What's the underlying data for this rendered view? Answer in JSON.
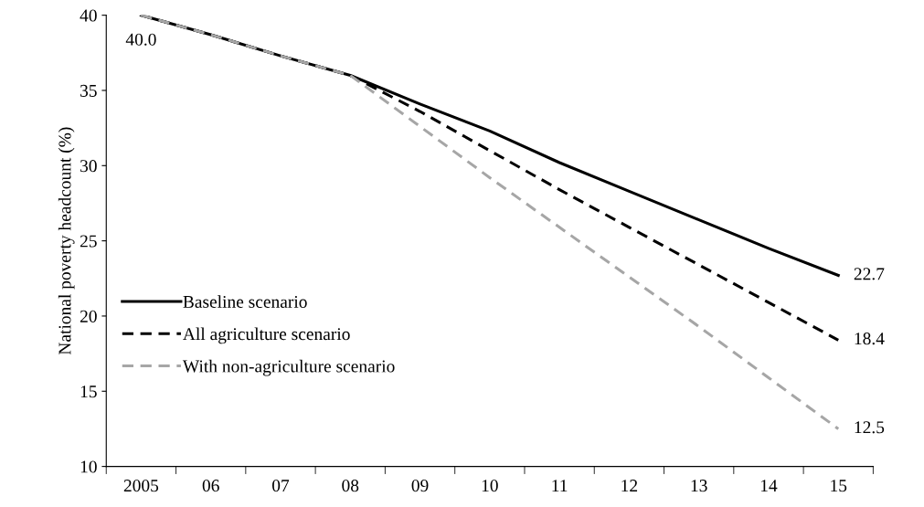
{
  "chart_data": {
    "type": "line",
    "ylabel": "National poverty headcount (%)",
    "categories": [
      "2005",
      "06",
      "07",
      "08",
      "09",
      "10",
      "11",
      "12",
      "13",
      "14",
      "15"
    ],
    "series": [
      {
        "name": "Baseline scenario",
        "color": "#000000",
        "line_style": "solid",
        "values": [
          40.0,
          38.7,
          37.3,
          36.0,
          34.1,
          32.3,
          30.2,
          28.3,
          26.4,
          24.5,
          22.7
        ],
        "value_labels": [
          "40.0",
          null,
          null,
          null,
          null,
          null,
          null,
          null,
          null,
          null,
          "22.7"
        ]
      },
      {
        "name": "All agriculture scenario",
        "color": "#000000",
        "line_style": "dashed",
        "values": [
          40.0,
          38.7,
          37.3,
          36.0,
          33.6,
          31.0,
          28.4,
          25.9,
          23.4,
          20.9,
          18.4
        ],
        "value_labels": [
          null,
          null,
          null,
          null,
          null,
          null,
          null,
          null,
          null,
          null,
          "18.4"
        ]
      },
      {
        "name": "With non-agriculture scenario",
        "color": "#a6a6a6",
        "line_style": "dashed",
        "values": [
          40.0,
          38.7,
          37.3,
          36.0,
          32.6,
          29.2,
          25.9,
          22.6,
          19.3,
          15.9,
          12.5
        ],
        "value_labels": [
          null,
          null,
          null,
          null,
          null,
          null,
          null,
          null,
          null,
          null,
          "12.5"
        ]
      }
    ],
    "ylim": [
      10,
      40
    ],
    "yticks": [
      10,
      15,
      20,
      25,
      30,
      35,
      40
    ],
    "grid": false,
    "legend": "left",
    "marker": "none"
  }
}
